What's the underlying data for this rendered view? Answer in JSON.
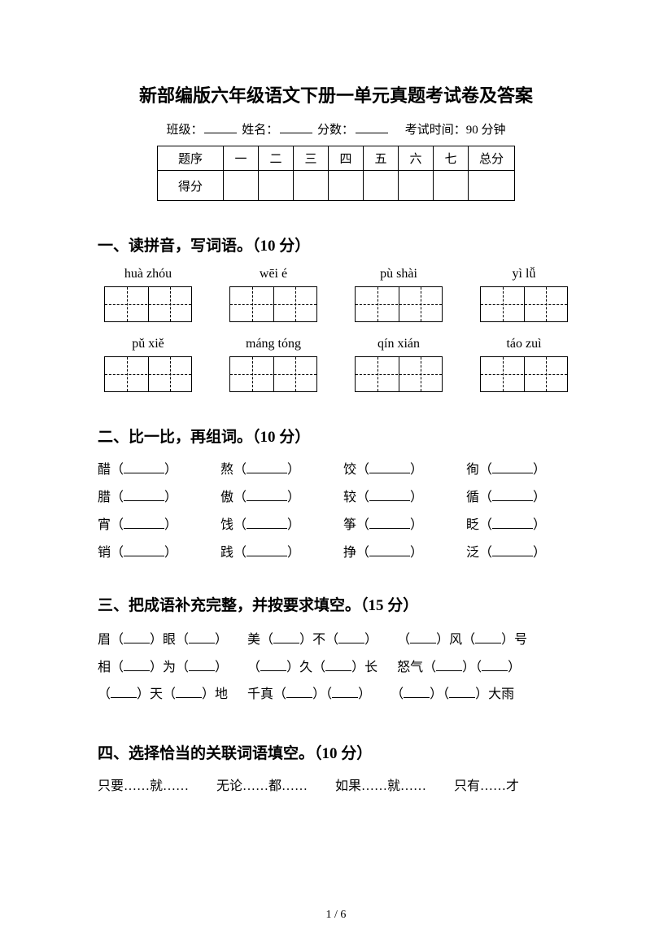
{
  "title": "新部编版六年级语文下册一单元真题考试卷及答案",
  "info": {
    "class_label": "班级：",
    "name_label": "姓名：",
    "score_label": "分数：",
    "time_label": "考试时间：90 分钟"
  },
  "score_table": {
    "row1": [
      "题序",
      "一",
      "二",
      "三",
      "四",
      "五",
      "六",
      "七",
      "总分"
    ],
    "row2_label": "得分"
  },
  "sec1": {
    "heading": "一、读拼音，写词语。（10 分）",
    "row1": [
      "huà zhóu",
      "wēi é",
      "pù shài",
      "yì lǚ"
    ],
    "row2": [
      "pǔ xiě",
      "máng tóng",
      "qín xián",
      "táo zuì"
    ]
  },
  "sec2": {
    "heading": "二、比一比，再组词。（10 分）",
    "rows": [
      [
        "醋",
        "熬",
        "饺",
        "徇"
      ],
      [
        "腊",
        "傲",
        "较",
        "循"
      ],
      [
        "宵",
        "饯",
        "筝",
        "眨"
      ],
      [
        "销",
        "践",
        "挣",
        "泛"
      ]
    ]
  },
  "sec3": {
    "heading": "三、把成语补充完整，并按要求填空。（15 分）",
    "items": [
      [
        "眉（",
        "）眼（",
        "）"
      ],
      [
        "美（",
        "）不（",
        "）"
      ],
      [
        "（",
        "）风（",
        "）号"
      ],
      [
        "相（",
        "）为（",
        "）"
      ],
      [
        "（",
        "）久（",
        "）长"
      ],
      [
        "怒气（",
        "）（",
        "）"
      ],
      [
        "（",
        "）天（",
        "）地"
      ],
      [
        "千真（",
        "）（",
        "）"
      ],
      [
        "（",
        "）（",
        "）大雨"
      ]
    ]
  },
  "sec4": {
    "heading": "四、选择恰当的关联词语填空。（10 分）",
    "options": [
      "只要……就……",
      "无论……都……",
      "如果……就……",
      "只有……才"
    ]
  },
  "page_num": "1 / 6"
}
